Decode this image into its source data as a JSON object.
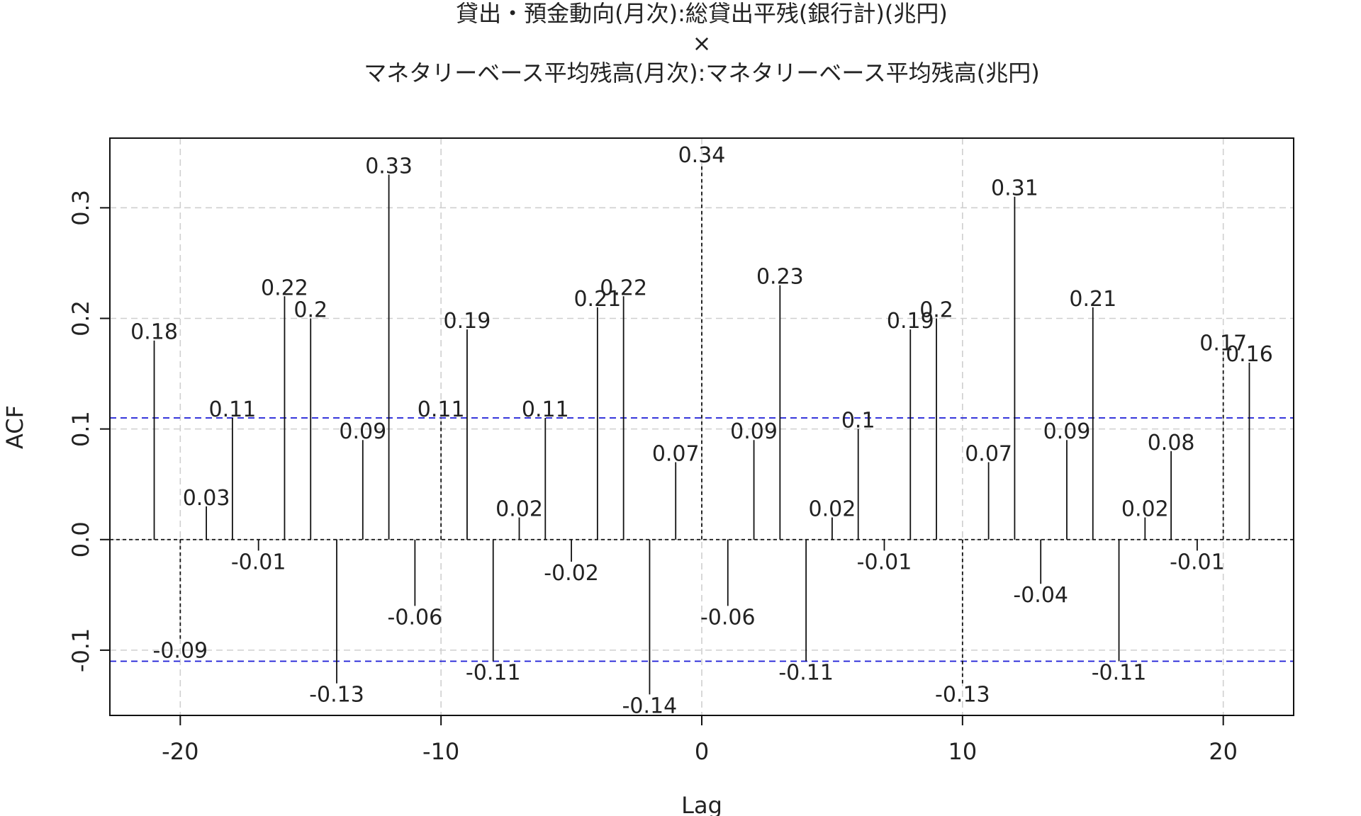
{
  "chart_data": {
    "type": "bar",
    "title_lines": [
      "貸出・預金動向(月次):総貸出平残(銀行計)(兆円)",
      "×",
      "マネタリーベース平均残高(月次):マネタリーベース平均残高(兆円)"
    ],
    "xlabel": "Lag",
    "ylabel": "ACF",
    "xlim": [
      -22.7,
      22.7
    ],
    "ylim": [
      -0.159,
      0.363
    ],
    "xticks": [
      -20,
      -10,
      0,
      10,
      20
    ],
    "yticks": [
      -0.1,
      0.0,
      0.1,
      0.2,
      0.3
    ],
    "ytick_labels": [
      "-0.1",
      "0.0",
      "0.1",
      "0.2",
      "0.3"
    ],
    "grid": true,
    "confidence_bound": 0.11,
    "lags": [
      -21,
      -20,
      -19,
      -18,
      -17,
      -16,
      -15,
      -14,
      -13,
      -12,
      -11,
      -10,
      -9,
      -8,
      -7,
      -6,
      -5,
      -4,
      -3,
      -2,
      -1,
      0,
      1,
      2,
      3,
      4,
      5,
      6,
      7,
      8,
      9,
      10,
      11,
      12,
      13,
      14,
      15,
      16,
      17,
      18,
      19,
      20,
      21
    ],
    "values": [
      0.18,
      -0.09,
      0.03,
      0.11,
      -0.01,
      0.22,
      0.2,
      -0.13,
      0.09,
      0.33,
      -0.06,
      0.11,
      0.19,
      -0.11,
      0.02,
      0.11,
      -0.02,
      0.21,
      0.22,
      -0.14,
      0.07,
      0.34,
      -0.06,
      0.09,
      0.23,
      -0.11,
      0.02,
      0.1,
      -0.01,
      0.19,
      0.2,
      -0.13,
      0.07,
      0.31,
      -0.04,
      0.09,
      0.21,
      -0.11,
      0.02,
      0.08,
      -0.01,
      0.17,
      0.16
    ],
    "labels": [
      "0.18",
      "-0.09",
      "0.03",
      "0.11",
      "-0.01",
      "0.22",
      "0.2",
      "-0.13",
      "0.09",
      "0.33",
      "-0.06",
      "0.11",
      "0.19",
      "-0.11",
      "0.02",
      "0.11",
      "-0.02",
      "0.21",
      "0.22",
      "-0.14",
      "0.07",
      "0.34",
      "-0.06",
      "0.09",
      "0.23",
      "-0.11",
      "0.02",
      "0.1",
      "-0.01",
      "0.19",
      "0.2",
      "-0.13",
      "0.07",
      "0.31",
      "-0.04",
      "0.09",
      "0.21",
      "-0.11",
      "0.02",
      "0.08",
      "-0.01",
      "0.17",
      "0.16"
    ],
    "dashed_lags": [
      -20,
      -10,
      0,
      10,
      20
    ],
    "colors": {
      "bars": "#111111",
      "confidence": "#1a1ad6",
      "grid": "#cfcfcf"
    }
  }
}
